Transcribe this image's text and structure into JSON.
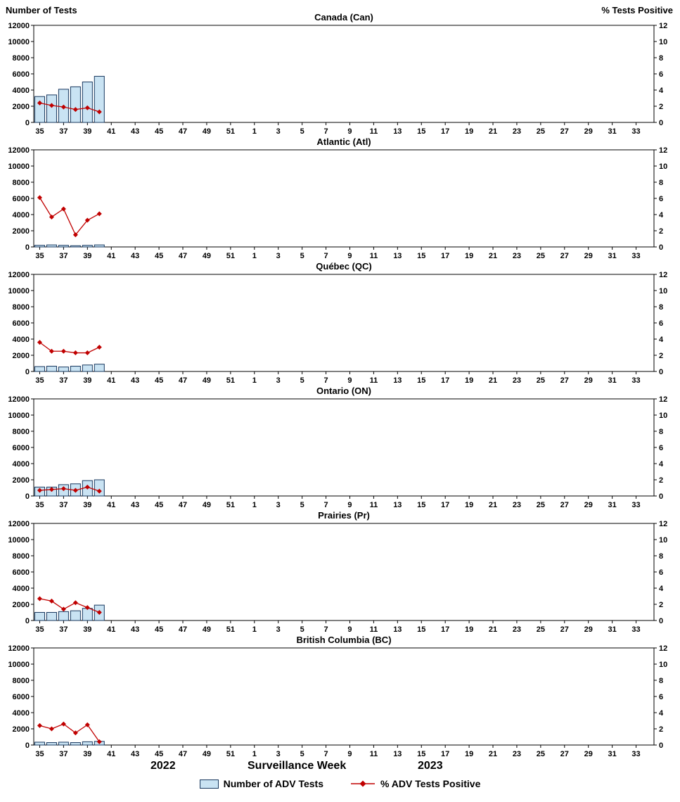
{
  "header": {
    "left_axis_title": "Number of Tests",
    "right_axis_title": "% Tests Positive"
  },
  "footer": {
    "year_left": "2022",
    "xlabel": "Surveillance Week",
    "year_right": "2023"
  },
  "legend": {
    "bar_label": "Number of ADV Tests",
    "line_label": "% ADV Tests Positive"
  },
  "colors": {
    "bar_fill": "#c9e3f3",
    "bar_stroke": "#17375e",
    "line_color": "#c00000",
    "axis_color": "#000000"
  },
  "axes": {
    "left_ylim": [
      0,
      12000
    ],
    "left_ticks": [
      0,
      2000,
      4000,
      6000,
      8000,
      10000,
      12000
    ],
    "right_ylim": [
      0,
      12
    ],
    "right_ticks": [
      0,
      2,
      4,
      6,
      8,
      10,
      12
    ],
    "grid": "off",
    "week_slots": [
      35,
      36,
      37,
      38,
      39,
      40,
      41,
      42,
      43,
      44,
      45,
      46,
      47,
      48,
      49,
      50,
      51,
      52,
      1,
      2,
      3,
      4,
      5,
      6,
      7,
      8,
      9,
      10,
      11,
      12,
      13,
      14,
      15,
      16,
      17,
      18,
      19,
      20,
      21,
      22,
      23,
      24,
      25,
      26,
      27,
      28,
      29,
      30,
      31,
      32,
      33,
      34
    ],
    "x_tick_labels": [
      "35",
      "37",
      "39",
      "41",
      "43",
      "45",
      "47",
      "49",
      "51",
      "1",
      "3",
      "5",
      "7",
      "9",
      "11",
      "13",
      "15",
      "17",
      "19",
      "21",
      "23",
      "25",
      "27",
      "29",
      "31",
      "33"
    ]
  },
  "chart_data": [
    {
      "id": "canada",
      "type": "bar+line",
      "title": "Canada (Can)",
      "bar_series": "Number of ADV Tests",
      "line_series": "% ADV Tests Positive",
      "weeks": [
        35,
        36,
        37,
        38,
        39,
        40
      ],
      "tests": [
        3200,
        3400,
        4100,
        4400,
        5000,
        5700
      ],
      "pct_positive": [
        2.4,
        2.1,
        1.9,
        1.6,
        1.8,
        1.3
      ]
    },
    {
      "id": "atlantic",
      "type": "bar+line",
      "title": "Atlantic (Atl)",
      "bar_series": "Number of ADV Tests",
      "line_series": "% ADV Tests Positive",
      "weeks": [
        35,
        36,
        37,
        38,
        39,
        40
      ],
      "tests": [
        200,
        250,
        200,
        150,
        200,
        250
      ],
      "pct_positive": [
        6.1,
        3.7,
        4.7,
        1.5,
        3.3,
        4.1
      ]
    },
    {
      "id": "quebec",
      "type": "bar+line",
      "title": "Québec (QC)",
      "bar_series": "Number of ADV Tests",
      "line_series": "% ADV Tests Positive",
      "weeks": [
        35,
        36,
        37,
        38,
        39,
        40
      ],
      "tests": [
        600,
        650,
        550,
        650,
        800,
        900
      ],
      "pct_positive": [
        3.6,
        2.5,
        2.5,
        2.3,
        2.3,
        3.0
      ]
    },
    {
      "id": "ontario",
      "type": "bar+line",
      "title": "Ontario (ON)",
      "bar_series": "Number of ADV Tests",
      "line_series": "% ADV Tests Positive",
      "weeks": [
        35,
        36,
        37,
        38,
        39,
        40
      ],
      "tests": [
        1100,
        1100,
        1400,
        1500,
        1900,
        2000
      ],
      "pct_positive": [
        0.7,
        0.8,
        0.9,
        0.7,
        1.1,
        0.6
      ]
    },
    {
      "id": "prairies",
      "type": "bar+line",
      "title": "Prairies (Pr)",
      "bar_series": "Number of ADV Tests",
      "line_series": "% ADV Tests Positive",
      "weeks": [
        35,
        36,
        37,
        38,
        39,
        40
      ],
      "tests": [
        1000,
        1000,
        1100,
        1200,
        1500,
        1900
      ],
      "pct_positive": [
        2.7,
        2.4,
        1.4,
        2.2,
        1.6,
        1.0
      ]
    },
    {
      "id": "british-columbia",
      "type": "bar+line",
      "title": "British Columbia (BC)",
      "bar_series": "Number of ADV Tests",
      "line_series": "% ADV Tests Positive",
      "weeks": [
        35,
        36,
        37,
        38,
        39,
        40
      ],
      "tests": [
        350,
        300,
        350,
        300,
        400,
        450
      ],
      "pct_positive": [
        2.4,
        2.0,
        2.6,
        1.5,
        2.5,
        0.4
      ]
    }
  ]
}
